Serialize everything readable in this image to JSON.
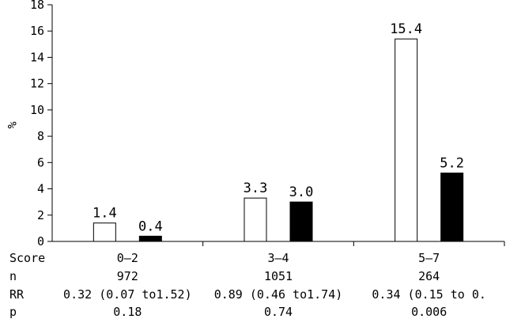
{
  "chart_data": {
    "type": "bar",
    "ylabel": "%",
    "ylim": [
      0,
      18
    ],
    "yticks": [
      0,
      2,
      4,
      6,
      8,
      10,
      12,
      14,
      16,
      18
    ],
    "categories": [
      "0–2",
      "3–4",
      "5–7"
    ],
    "series": [
      {
        "fill": "#ffffff",
        "values": [
          1.4,
          3.3,
          15.4
        ],
        "labels": [
          "1.4",
          "3.3",
          "15.4"
        ]
      },
      {
        "fill": "#000000",
        "values": [
          0.4,
          3.0,
          5.2
        ],
        "labels": [
          "0.4",
          "3.0",
          "5.2"
        ]
      }
    ]
  },
  "table": {
    "rows": [
      {
        "label": "Score",
        "values": [
          "0–2",
          "3–4",
          "5–7"
        ]
      },
      {
        "label": "n",
        "values": [
          "972",
          "1051",
          "264"
        ]
      },
      {
        "label": "RR",
        "values": [
          "0.32 (0.07 to1.52)",
          "0.89 (0.46 to1.74)",
          "0.34 (0.15 to 0."
        ]
      },
      {
        "label": "p",
        "values": [
          "0.18",
          "0.74",
          "0.006"
        ]
      }
    ]
  }
}
